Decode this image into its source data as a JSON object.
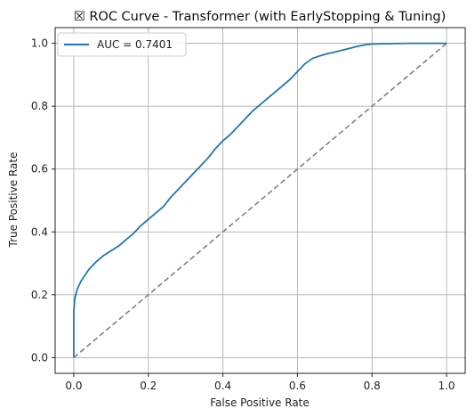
{
  "chart_data": {
    "type": "line",
    "title": "☒ ROC Curve - Transformer (with EarlyStopping & Tuning)",
    "xlabel": "False Positive Rate",
    "ylabel": "True Positive Rate",
    "xlim": [
      -0.05,
      1.05
    ],
    "ylim": [
      -0.05,
      1.05
    ],
    "xticks": [
      0.0,
      0.2,
      0.4,
      0.6,
      0.8,
      1.0
    ],
    "yticks": [
      0.0,
      0.2,
      0.4,
      0.6,
      0.8,
      1.0
    ],
    "xtick_labels": [
      "0.0",
      "0.2",
      "0.4",
      "0.6",
      "0.8",
      "1.0"
    ],
    "ytick_labels": [
      "0.0",
      "0.2",
      "0.4",
      "0.6",
      "0.8",
      "1.0"
    ],
    "grid": true,
    "legend": {
      "position": "upper-left"
    },
    "series": [
      {
        "name": "AUC = 0.7401",
        "color": "#1f77b4",
        "style": "solid",
        "x": [
          0.0,
          0.0,
          0.003,
          0.01,
          0.02,
          0.04,
          0.06,
          0.08,
          0.1,
          0.12,
          0.14,
          0.16,
          0.18,
          0.2,
          0.22,
          0.24,
          0.26,
          0.28,
          0.3,
          0.32,
          0.34,
          0.36,
          0.38,
          0.4,
          0.42,
          0.44,
          0.46,
          0.48,
          0.5,
          0.52,
          0.54,
          0.56,
          0.58,
          0.6,
          0.62,
          0.64,
          0.66,
          0.68,
          0.7,
          0.72,
          0.74,
          0.76,
          0.78,
          0.8,
          0.85,
          0.9,
          0.95,
          1.0
        ],
        "y": [
          0.0,
          0.15,
          0.19,
          0.22,
          0.245,
          0.28,
          0.305,
          0.325,
          0.34,
          0.355,
          0.375,
          0.395,
          0.42,
          0.44,
          0.46,
          0.48,
          0.51,
          0.535,
          0.56,
          0.585,
          0.61,
          0.635,
          0.665,
          0.69,
          0.71,
          0.735,
          0.76,
          0.785,
          0.805,
          0.825,
          0.845,
          0.865,
          0.885,
          0.91,
          0.935,
          0.952,
          0.96,
          0.967,
          0.972,
          0.978,
          0.984,
          0.99,
          0.995,
          0.998,
          0.999,
          1.0,
          1.0,
          1.0
        ]
      },
      {
        "name": "",
        "color": "#808080",
        "style": "dashed",
        "x": [
          0.0,
          1.0
        ],
        "y": [
          0.0,
          1.0
        ]
      }
    ]
  }
}
